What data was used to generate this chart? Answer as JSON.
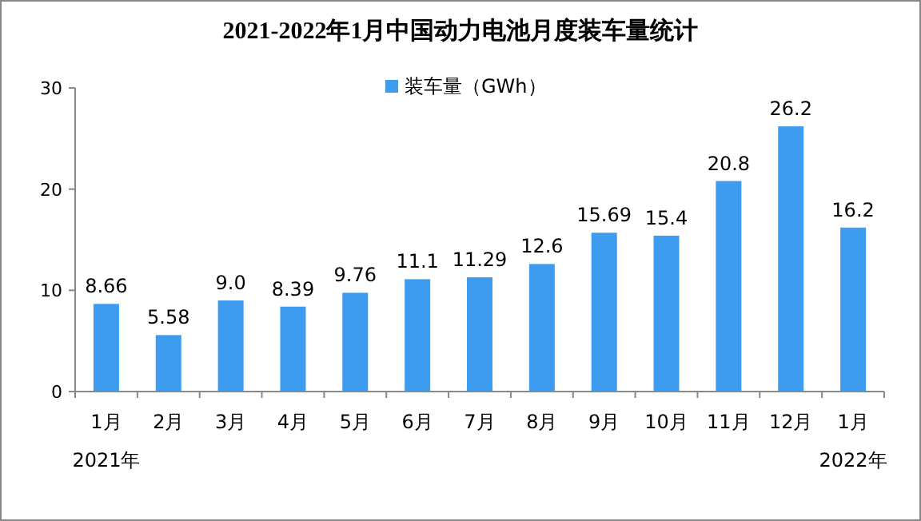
{
  "chart_data": {
    "type": "bar",
    "title": "2021-2022年1月中国动力电池月度装车量统计",
    "categories": [
      "1月",
      "2月",
      "3月",
      "4月",
      "5月",
      "6月",
      "7月",
      "8月",
      "9月",
      "10月",
      "11月",
      "12月",
      "1月"
    ],
    "series": [
      {
        "name": "装车量（GWh）",
        "color": "#3d9cf0",
        "values": [
          8.66,
          5.58,
          9.0,
          8.39,
          9.76,
          11.1,
          11.29,
          12.6,
          15.69,
          15.4,
          20.8,
          26.2,
          16.2
        ],
        "value_labels": [
          "8.66",
          "5.58",
          "9.0",
          "8.39",
          "9.76",
          "11.1",
          "11.29",
          "12.6",
          "15.69",
          "15.4",
          "20.8",
          "26.2",
          "16.2"
        ]
      }
    ],
    "ylim": [
      0,
      30
    ],
    "yticks": [
      0,
      10,
      20,
      30
    ],
    "grid": false,
    "legend": "top",
    "annotations": [
      "2021年",
      "2022年"
    ]
  }
}
